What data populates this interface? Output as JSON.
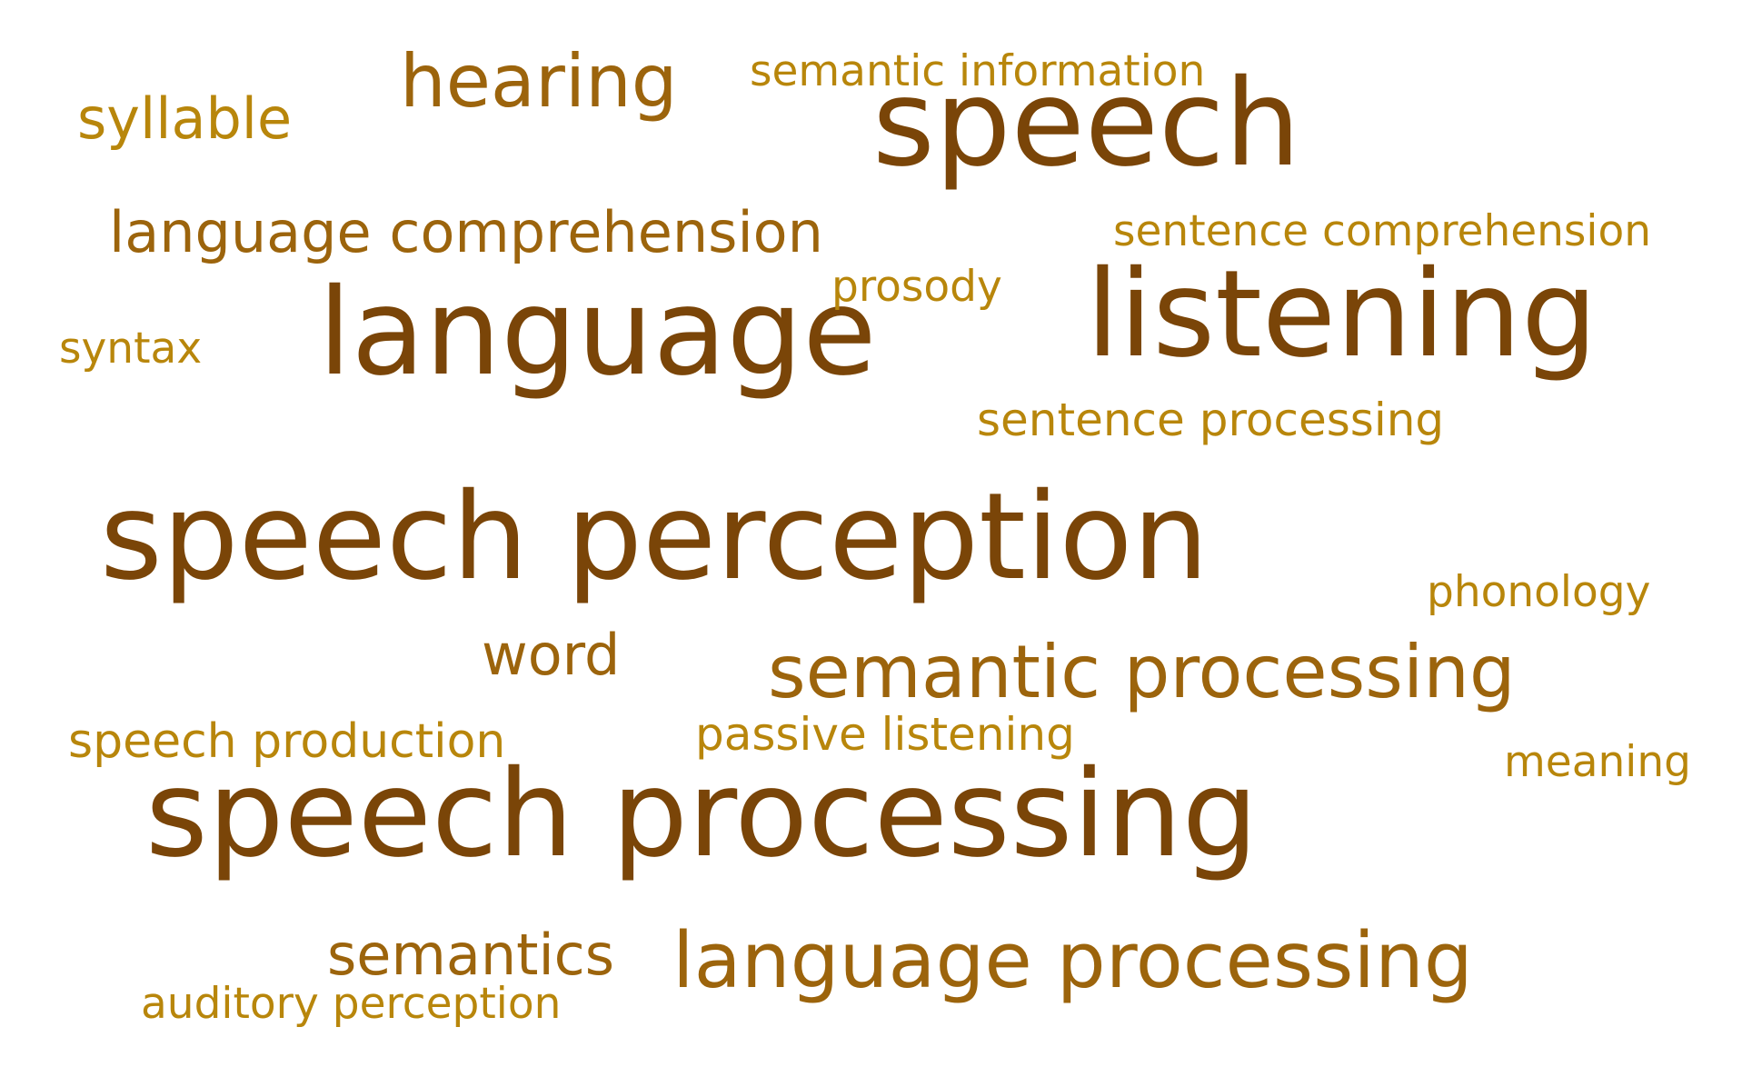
{
  "words": {
    "speech": "speech",
    "language": "language",
    "listening": "listening",
    "speech_perception": "speech perception",
    "speech_processing": "speech processing",
    "language_processing": "language processing",
    "semantic_processing": "semantic processing",
    "hearing": "hearing",
    "language_comprehension": "language comprehension",
    "semantics": "semantics",
    "sentence_processing": "sentence processing",
    "sentence_comprehension": "sentence comprehension",
    "semantic_information": "semantic information",
    "syllable": "syllable",
    "word": "word",
    "speech_production": "speech production",
    "passive_listening": "passive listening",
    "auditory_perception": "auditory perception",
    "phonology": "phonology",
    "meaning": "meaning",
    "prosody": "prosody",
    "syntax": "syntax"
  },
  "colors": {
    "dark": "#7a4508",
    "mid": "#9c640c",
    "light": "#b8860b",
    "background": "#ffffff"
  }
}
